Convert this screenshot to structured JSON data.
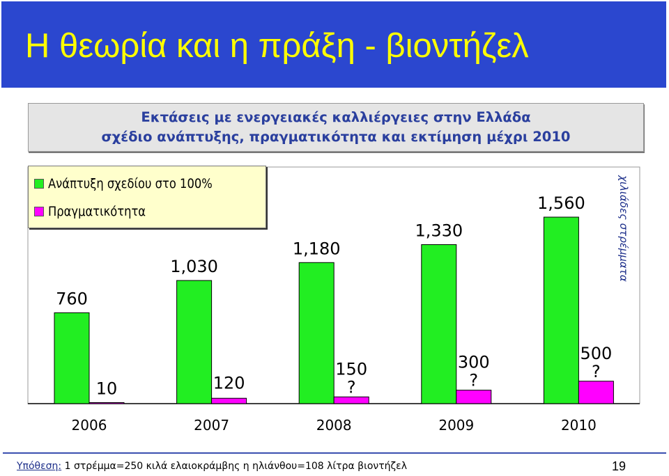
{
  "title": "Η θεωρία και η πράξη - βιοντήζελ",
  "subtitle": {
    "line1": "Εκτάσεις με ενεργειακές καλλιέργειες στην Ελλάδα",
    "line2": "σχέδιο ανάπτυξης, πραγματικότητα και εκτίμηση μέχρι 2010"
  },
  "colors": {
    "title_bg": "#2b47cf",
    "title_text": "#ffff00",
    "plan": "#22ee22",
    "actual": "#ff00ff",
    "subtitle_text": "#2a3f9e",
    "legend_bg": "#ffffcc"
  },
  "chart_data": {
    "type": "bar",
    "categories": [
      "2006",
      "2007",
      "2008",
      "2009",
      "2010"
    ],
    "series": [
      {
        "name": "Ανάπτυξη σχεδίου στο 100%",
        "values": [
          760,
          1030,
          1180,
          1330,
          1560
        ],
        "labels": [
          "760",
          "1,030",
          "1,180",
          "1,330",
          "1,560"
        ],
        "color": "#22ee22"
      },
      {
        "name": "Πραγματικότητα",
        "values": [
          10,
          120,
          150,
          300,
          500
        ],
        "labels": [
          "10",
          "120",
          "150",
          "300",
          "500"
        ],
        "color": "#ff00ff",
        "uncertain_marks": [
          "",
          "",
          "?",
          "?",
          "?"
        ]
      }
    ],
    "ylabel": "χιλιάδες στρέμματα",
    "legend_position": "top-left"
  },
  "footer": {
    "label": "Υπόθεση:",
    "text": " 1 στρέμμα=250 κιλά ελαιοκράμβης η ηλιάνθου=108 λίτρα βιοντήζελ",
    "page_number": "19"
  }
}
